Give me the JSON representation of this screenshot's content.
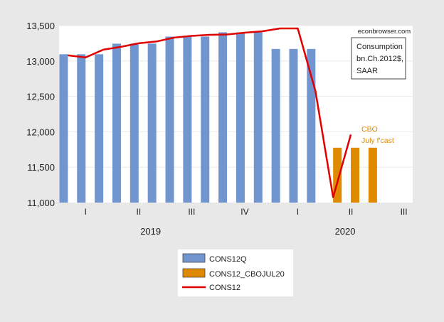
{
  "chart_data": {
    "type": "bar",
    "title": "",
    "xlabel": "",
    "ylabel": "",
    "ylim": [
      11000,
      13500
    ],
    "yticks": [
      "11,000",
      "11,500",
      "12,000",
      "12,500",
      "13,000",
      "13,500"
    ],
    "ytick_values": [
      11000,
      11500,
      12000,
      12500,
      13000,
      13500
    ],
    "grid": true,
    "months": [
      "2019-01",
      "2019-02",
      "2019-03",
      "2019-04",
      "2019-05",
      "2019-06",
      "2019-07",
      "2019-08",
      "2019-09",
      "2019-10",
      "2019-11",
      "2019-12",
      "2020-01",
      "2020-02",
      "2020-03",
      "2020-04",
      "2020-05",
      "2020-06",
      "2020-07",
      "2020-08"
    ],
    "quarter_labels": [
      {
        "label": "I",
        "month": "2019-02"
      },
      {
        "label": "II",
        "month": "2019-05"
      },
      {
        "label": "III",
        "month": "2019-08"
      },
      {
        "label": "IV",
        "month": "2019-11"
      },
      {
        "label": "I",
        "month": "2020-02"
      },
      {
        "label": "II",
        "month": "2020-05"
      },
      {
        "label": "III",
        "month": "2020-08"
      }
    ],
    "year_labels": [
      {
        "label": "2019",
        "month": "2019-06"
      },
      {
        "label": "2020",
        "month": "2020-05"
      }
    ],
    "series": [
      {
        "name": "CONS12Q",
        "type": "bar",
        "color": "#7195cf",
        "values": [
          13095,
          13095,
          13095,
          13245,
          13245,
          13245,
          13345,
          13345,
          13345,
          13405,
          13405,
          13405,
          13170,
          13170,
          13170,
          null,
          null,
          null,
          null,
          null
        ]
      },
      {
        "name": "CONS12_CBOJUL20",
        "type": "bar",
        "color": "#df8a00",
        "values": [
          null,
          null,
          null,
          null,
          null,
          null,
          null,
          null,
          null,
          null,
          null,
          null,
          null,
          null,
          null,
          11775,
          11775,
          11775,
          null,
          null
        ]
      },
      {
        "name": "CONS12",
        "type": "line",
        "color": "#e00000",
        "values": [
          13080,
          13050,
          13160,
          13200,
          13250,
          13275,
          13330,
          13355,
          13370,
          13375,
          13400,
          13420,
          13460,
          13460,
          12575,
          11075,
          11960,
          null,
          null,
          null
        ]
      }
    ],
    "legend_position": "bottom",
    "annotations": {
      "source": "econbrowser.com",
      "units_box": [
        "Consumption",
        "bn.Ch.2012$,",
        "SAAR"
      ],
      "forecast_note": [
        "CBO",
        "July f'cast"
      ]
    }
  }
}
